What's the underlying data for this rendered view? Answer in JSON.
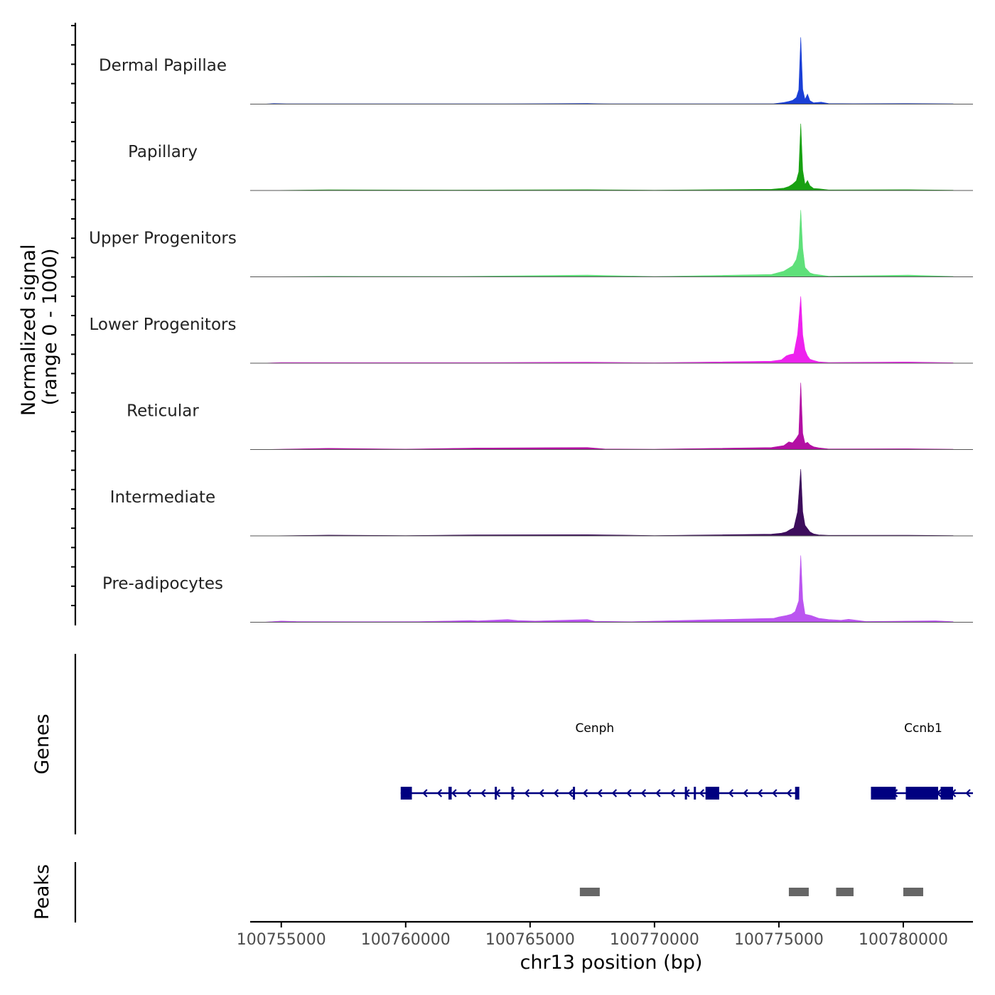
{
  "chart_data": {
    "type": "area",
    "title": "",
    "xlabel": "chr13 position (bp)",
    "ylabel_line1": "Normalized signal",
    "ylabel_line2": "(range 0 - 1000)",
    "xlim": [
      100753750,
      100782800
    ],
    "x_ticks": [
      100755000,
      100760000,
      100765000,
      100770000,
      100775000,
      100780000
    ],
    "x_tick_labels": [
      "100755000",
      "100760000",
      "100765000",
      "100770000",
      "100775000",
      "100780000"
    ],
    "ylim": [
      0,
      1000
    ],
    "tracks": [
      {
        "name": "Dermal Papillae",
        "color": "#1a3fd6",
        "points": [
          [
            100754250,
            0
          ],
          [
            100754700,
            8
          ],
          [
            100755200,
            4
          ],
          [
            100757000,
            5
          ],
          [
            100760500,
            4
          ],
          [
            100764000,
            4
          ],
          [
            100767300,
            10
          ],
          [
            100767700,
            6
          ],
          [
            100768200,
            4
          ],
          [
            100771000,
            4
          ],
          [
            100774800,
            6
          ],
          [
            100775200,
            24
          ],
          [
            100775400,
            40
          ],
          [
            100775550,
            56
          ],
          [
            100775700,
            98
          ],
          [
            100775800,
            215
          ],
          [
            100775880,
            1000
          ],
          [
            100775960,
            220
          ],
          [
            100776050,
            70
          ],
          [
            100776150,
            150
          ],
          [
            100776250,
            50
          ],
          [
            100776400,
            20
          ],
          [
            100776700,
            30
          ],
          [
            100777000,
            8
          ],
          [
            100778000,
            6
          ],
          [
            100780200,
            8
          ],
          [
            100782000,
            4
          ]
        ]
      },
      {
        "name": "Papillary",
        "color": "#18a112",
        "points": [
          [
            100754250,
            0
          ],
          [
            100756900,
            10
          ],
          [
            100762000,
            6
          ],
          [
            100767300,
            12
          ],
          [
            100770000,
            5
          ],
          [
            100774700,
            18
          ],
          [
            100775200,
            35
          ],
          [
            100775400,
            60
          ],
          [
            100775550,
            95
          ],
          [
            100775700,
            145
          ],
          [
            100775800,
            280
          ],
          [
            100775880,
            1000
          ],
          [
            100775960,
            300
          ],
          [
            100776050,
            90
          ],
          [
            100776150,
            150
          ],
          [
            100776250,
            70
          ],
          [
            100776400,
            30
          ],
          [
            100776600,
            25
          ],
          [
            100777000,
            8
          ],
          [
            100780200,
            12
          ],
          [
            100782000,
            4
          ]
        ]
      },
      {
        "name": "Upper Progenitors",
        "color": "#5fe07a",
        "points": [
          [
            100754250,
            0
          ],
          [
            100756900,
            8
          ],
          [
            100762000,
            6
          ],
          [
            100767300,
            25
          ],
          [
            100770000,
            5
          ],
          [
            100774700,
            35
          ],
          [
            100775200,
            85
          ],
          [
            100775400,
            130
          ],
          [
            100775550,
            165
          ],
          [
            100775700,
            260
          ],
          [
            100775800,
            430
          ],
          [
            100775880,
            1000
          ],
          [
            100775960,
            420
          ],
          [
            100776050,
            140
          ],
          [
            100776150,
            100
          ],
          [
            100776250,
            60
          ],
          [
            100776400,
            40
          ],
          [
            100776600,
            30
          ],
          [
            100777000,
            10
          ],
          [
            100780200,
            25
          ],
          [
            100782000,
            6
          ]
        ]
      },
      {
        "name": "Lower Progenitors",
        "color": "#ee22ee",
        "points": [
          [
            100754250,
            0
          ],
          [
            100755000,
            10
          ],
          [
            100760000,
            8
          ],
          [
            100763000,
            8
          ],
          [
            100767300,
            15
          ],
          [
            100770000,
            6
          ],
          [
            100774700,
            30
          ],
          [
            100775100,
            50
          ],
          [
            100775300,
            110
          ],
          [
            100775450,
            130
          ],
          [
            100775600,
            140
          ],
          [
            100775750,
            430
          ],
          [
            100775880,
            1000
          ],
          [
            100775960,
            420
          ],
          [
            100776050,
            200
          ],
          [
            100776150,
            110
          ],
          [
            100776250,
            60
          ],
          [
            100776400,
            40
          ],
          [
            100776600,
            20
          ],
          [
            100777000,
            10
          ],
          [
            100780200,
            18
          ],
          [
            100782000,
            6
          ]
        ]
      },
      {
        "name": "Reticular",
        "color": "#b30fa3",
        "points": [
          [
            100754250,
            0
          ],
          [
            100756900,
            18
          ],
          [
            100760000,
            6
          ],
          [
            100762800,
            22
          ],
          [
            100767300,
            30
          ],
          [
            100768000,
            8
          ],
          [
            100770000,
            5
          ],
          [
            100774700,
            30
          ],
          [
            100775200,
            60
          ],
          [
            100775400,
            115
          ],
          [
            100775550,
            100
          ],
          [
            100775700,
            170
          ],
          [
            100775800,
            230
          ],
          [
            100775880,
            1000
          ],
          [
            100775960,
            240
          ],
          [
            100776050,
            90
          ],
          [
            100776150,
            110
          ],
          [
            100776250,
            70
          ],
          [
            100776400,
            40
          ],
          [
            100776600,
            25
          ],
          [
            100777000,
            8
          ],
          [
            100780200,
            12
          ],
          [
            100782000,
            4
          ]
        ]
      },
      {
        "name": "Intermediate",
        "color": "#3d0d5c",
        "points": [
          [
            100754250,
            0
          ],
          [
            100756900,
            12
          ],
          [
            100760000,
            5
          ],
          [
            100762800,
            15
          ],
          [
            100767300,
            18
          ],
          [
            100770000,
            5
          ],
          [
            100774700,
            25
          ],
          [
            100775100,
            40
          ],
          [
            100775300,
            60
          ],
          [
            100775450,
            95
          ],
          [
            100775600,
            120
          ],
          [
            100775750,
            360
          ],
          [
            100775880,
            1000
          ],
          [
            100775960,
            360
          ],
          [
            100776050,
            160
          ],
          [
            100776150,
            110
          ],
          [
            100776250,
            60
          ],
          [
            100776400,
            30
          ],
          [
            100776600,
            15
          ],
          [
            100777000,
            8
          ],
          [
            100780200,
            10
          ],
          [
            100782000,
            4
          ]
        ]
      },
      {
        "name": "Pre-adipocytes",
        "color": "#bb55f0",
        "points": [
          [
            100754250,
            0
          ],
          [
            100755000,
            18
          ],
          [
            100755600,
            12
          ],
          [
            100756800,
            10
          ],
          [
            100758600,
            8
          ],
          [
            100760500,
            10
          ],
          [
            100762600,
            25
          ],
          [
            100762900,
            20
          ],
          [
            100764100,
            40
          ],
          [
            100764500,
            25
          ],
          [
            100765200,
            18
          ],
          [
            100767300,
            40
          ],
          [
            100767600,
            15
          ],
          [
            100769000,
            8
          ],
          [
            100774800,
            60
          ],
          [
            100775000,
            80
          ],
          [
            100775300,
            100
          ],
          [
            100775500,
            120
          ],
          [
            100775650,
            160
          ],
          [
            100775800,
            320
          ],
          [
            100775880,
            1000
          ],
          [
            100775960,
            340
          ],
          [
            100776050,
            120
          ],
          [
            100776300,
            100
          ],
          [
            100776600,
            60
          ],
          [
            100777000,
            40
          ],
          [
            100777500,
            30
          ],
          [
            100777800,
            45
          ],
          [
            100778200,
            25
          ],
          [
            100778500,
            12
          ],
          [
            100780200,
            18
          ],
          [
            100781300,
            22
          ],
          [
            100782000,
            8
          ]
        ]
      }
    ],
    "genes_label": "Genes",
    "genes": [
      {
        "name": "Cenph",
        "strand": "-",
        "start": 100759800,
        "end": 100775800,
        "label_x": 100767600,
        "exons": [
          [
            100759800,
            100760250
          ],
          [
            100761720,
            100761850
          ],
          [
            100763580,
            100763620
          ],
          [
            100764250,
            100764290
          ],
          [
            100766720,
            100766760
          ],
          [
            100771220,
            100771260
          ],
          [
            100771580,
            100771620
          ],
          [
            100772050,
            100772600
          ],
          [
            100775650,
            100775820
          ]
        ]
      },
      {
        "name": "Ccnb1",
        "strand": "-",
        "start": 100778700,
        "end": 100782800,
        "label_x": 100780800,
        "exons": [
          [
            100778700,
            100779700
          ],
          [
            100780100,
            100781400
          ],
          [
            100781500,
            100782000
          ]
        ]
      }
    ],
    "peaks_label": "Peaks",
    "peaks": [
      [
        100767000,
        100767800
      ],
      [
        100775400,
        100776200
      ],
      [
        100777300,
        100778000
      ],
      [
        100780000,
        100780800
      ]
    ]
  }
}
